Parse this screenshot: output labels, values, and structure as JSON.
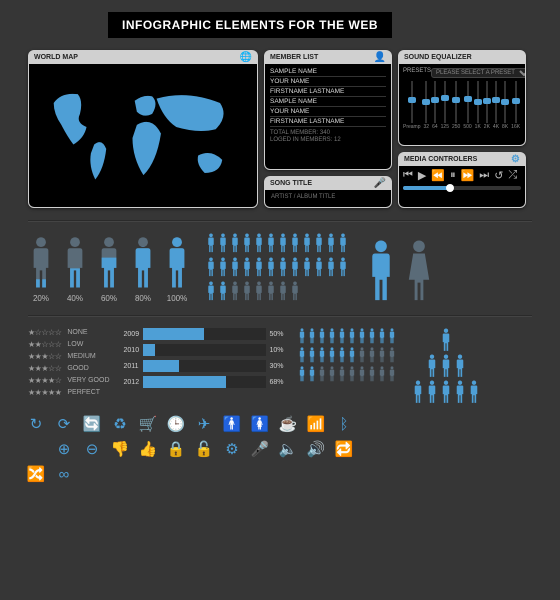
{
  "title": "INFOGRAPHIC ELEMENTS FOR THE WEB",
  "colors": {
    "bg": "#363636",
    "accent": "#4e9fd6",
    "dim": "#5a6b78",
    "panel_hdr": "#d0d0d0",
    "panel_body": "#000000",
    "text_muted": "#888888"
  },
  "worldmap": {
    "label": "WORLD MAP",
    "fill": "#4e9fd6"
  },
  "memberlist": {
    "label": "MEMBER LIST",
    "members": [
      "SAMPLE NAME",
      "YOUR NAME",
      "FIRSTNAME LASTNAME",
      "SAMPLE NAME",
      "YOUR NAME",
      "FIRSTNAME LASTNAME"
    ],
    "footer_total": "TOTAL MEMBER: 340",
    "footer_logged": "LOGED IN MEMBERS: 12"
  },
  "songtitle": {
    "label": "SONG TITLE",
    "title": "SONG TITLE",
    "sub": "ARTIST / ALBUM TITLE"
  },
  "equalizer": {
    "label": "SOUND EQUALIZER",
    "presets_label": "PRESETS",
    "dropdown": "PLEASE SELECT A PRESET",
    "preamp_label": "Preamp",
    "left_marks": [
      "+12",
      "0dB",
      "-12"
    ],
    "bands": [
      {
        "hz": "Preamp",
        "val": 0.55
      },
      {
        "hz": "32",
        "val": 0.5
      },
      {
        "hz": "64",
        "val": 0.55
      },
      {
        "hz": "125",
        "val": 0.6
      },
      {
        "hz": "250",
        "val": 0.55
      },
      {
        "hz": "500",
        "val": 0.58
      },
      {
        "hz": "1K",
        "val": 0.5
      },
      {
        "hz": "2K",
        "val": 0.52
      },
      {
        "hz": "4K",
        "val": 0.56
      },
      {
        "hz": "8K",
        "val": 0.5
      },
      {
        "hz": "16K",
        "val": 0.54
      }
    ]
  },
  "media": {
    "label": "MEDIA CONTROLERS",
    "icons": [
      "⏮",
      "▶",
      "⏪",
      "⏸",
      "⏩",
      "⏭",
      "↺",
      "⤮"
    ],
    "progress": 0.4
  },
  "person_fill": {
    "values": [
      20,
      40,
      60,
      80,
      100
    ],
    "base_color": "#5a6b78",
    "fill_color": "#4e9fd6"
  },
  "people_mass": {
    "count": 32,
    "cols": 11,
    "active": 26
  },
  "hbar": {
    "rows": [
      {
        "year": "2009",
        "pct": 50
      },
      {
        "year": "2010",
        "pct": 10
      },
      {
        "year": "2011",
        "pct": 30
      },
      {
        "year": "2012",
        "pct": 68
      }
    ],
    "track": "#2a2a2a",
    "fill": "#4e9fd6"
  },
  "ratings": {
    "rows": [
      {
        "stars": 1,
        "label": "NONE"
      },
      {
        "stars": 2,
        "label": "LOW"
      },
      {
        "stars": 3,
        "label": "MEDIUM"
      },
      {
        "stars": 3,
        "label": "GOOD"
      },
      {
        "stars": 4,
        "label": "VERY GOOD"
      },
      {
        "stars": 5,
        "label": "PERFECT"
      }
    ]
  },
  "people_rows": [
    {
      "count": 10,
      "active": 10
    },
    {
      "count": 10,
      "active": 6
    },
    {
      "count": 10,
      "active": 2
    }
  ],
  "pyramid": [
    1,
    3,
    5
  ],
  "icons": [
    "refresh-sm",
    "refresh-lg",
    "sync",
    "recycle",
    "cart",
    "clock",
    "plane",
    "person-m",
    "person-f",
    "coffee",
    "wifi",
    "bluetooth",
    "rss",
    "zoom-in",
    "zoom-out",
    "thumbs-down",
    "thumbs-up",
    "lock",
    "unlock",
    "gear",
    "mic",
    "volume",
    "volume-up",
    "repeat",
    "shuffle",
    "infinity"
  ]
}
